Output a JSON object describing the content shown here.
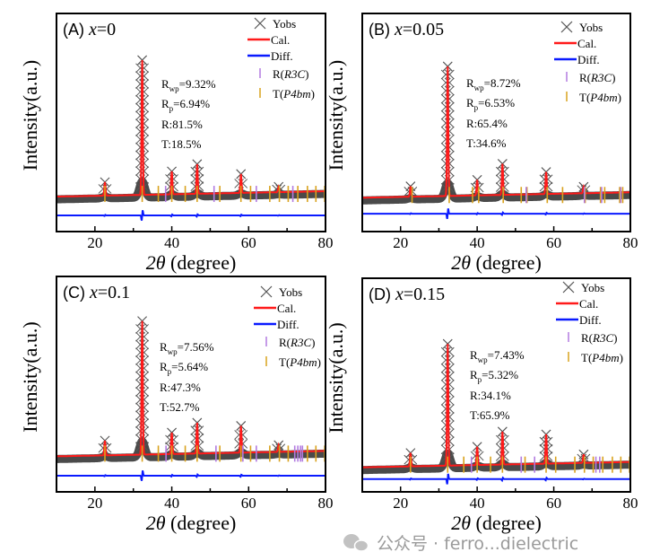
{
  "chart_data": [
    {
      "type": "line",
      "panel_label": "(A)",
      "variable": "x",
      "value_text": "=0",
      "xlabel": "2θ (degree)",
      "ylabel": "Intensity(a.u.)",
      "xlim": [
        10,
        80
      ],
      "xticks": [
        "20",
        "40",
        "60",
        "80"
      ],
      "stats": {
        "rwp": "=9.32%",
        "rp": "=6.94%",
        "r_phase": "R:81.5%",
        "t_phase": "T:18.5%"
      },
      "peaks": {
        "two_theta": [
          22.6,
          32.3,
          40.0,
          46.6,
          58.0,
          67.8
        ],
        "relative_intensity": [
          10,
          100,
          17,
          22,
          14,
          4
        ]
      },
      "r_reflections": [
        38.4,
        51.0,
        62.0,
        71.5
      ],
      "t_reflections": [
        22.6,
        32.3,
        36.5,
        40.0,
        43.5,
        46.6,
        52.5,
        58.0,
        60.5,
        65.5,
        68.0,
        70.3,
        72.8,
        75.3,
        77.5,
        79.8
      ]
    },
    {
      "type": "line",
      "panel_label": "(B)",
      "variable": "x",
      "value_text": "=0.05",
      "xlabel": "2θ (degree)",
      "ylabel": "Intensity(a.u.)",
      "xlim": [
        10,
        80
      ],
      "xticks": [
        "20",
        "40",
        "60",
        "80"
      ],
      "stats": {
        "rwp": "=8.72%",
        "rp": "=6.53%",
        "r_phase": "R:65.4%",
        "t_phase": "T:34.6%"
      },
      "peaks": {
        "two_theta": [
          22.6,
          32.3,
          40.0,
          46.6,
          58.0,
          67.8
        ],
        "relative_intensity": [
          8,
          100,
          12,
          24,
          17,
          5
        ]
      },
      "r_reflections": [
        52.8,
        68.0,
        72.5,
        77.5
      ],
      "t_reflections": [
        23.0,
        32.7,
        38.8,
        40.4,
        46.8,
        51.5,
        53.0,
        58.3,
        62.3,
        68.2,
        72.2,
        73.3,
        77.2,
        78.0
      ]
    },
    {
      "type": "line",
      "panel_label": "(C)",
      "variable": "x",
      "value_text": "=0.1",
      "xlabel": "2θ (degree)",
      "ylabel": "Intensity(a.u.)",
      "xlim": [
        10,
        80
      ],
      "xticks": [
        "20",
        "40",
        "60",
        "80"
      ],
      "stats": {
        "rwp": "=7.56%",
        "rp": "=5.64%",
        "r_phase": "R:47.3%",
        "t_phase": "T:52.7%"
      },
      "peaks": {
        "two_theta": [
          22.6,
          32.3,
          40.0,
          46.6,
          58.0,
          67.8
        ],
        "relative_intensity": [
          11,
          100,
          16,
          23,
          20,
          5
        ]
      },
      "r_reflections": [
        38.5,
        51.5,
        58.5,
        62.0,
        72.0,
        72.8,
        73.5,
        74.0
      ],
      "t_reflections": [
        22.6,
        32.3,
        36.5,
        40.0,
        43.5,
        46.6,
        52.5,
        58.0,
        60.5,
        65.5,
        68.0,
        70.3,
        75.3,
        77.5,
        79.8
      ]
    },
    {
      "type": "line",
      "panel_label": "(D)",
      "variable": "x",
      "value_text": "=0.15",
      "xlabel": "2θ (degree)",
      "ylabel": "Intensity(a.u.)",
      "xlim": [
        10,
        80
      ],
      "xticks": [
        "20",
        "40",
        "60",
        "80"
      ],
      "stats": {
        "rwp": "=7.43%",
        "rp": "=5.32%",
        "r_phase": "R:34.1%",
        "t_phase": "T:65.9%"
      },
      "peaks": {
        "two_theta": [
          22.6,
          32.3,
          40.0,
          46.6,
          58.0,
          67.8
        ],
        "relative_intensity": [
          11,
          100,
          15,
          27,
          24,
          7
        ]
      },
      "r_reflections": [
        38.5,
        51.5,
        55.0,
        71.0,
        72.0
      ],
      "t_reflections": [
        22.6,
        32.3,
        36.5,
        40.0,
        43.5,
        46.6,
        52.5,
        58.0,
        60.5,
        65.5,
        68.0,
        70.3,
        72.8,
        75.3,
        77.5,
        79.8
      ]
    }
  ],
  "legend": {
    "yobs": "Yobs",
    "cal": "Cal.",
    "diff": "Diff.",
    "r_prefix": "R(",
    "r_group": "R3C",
    "r_suffix": ")",
    "t_prefix": "T(",
    "t_group": "P4bm",
    "t_suffix": ")"
  },
  "stat_symbols": {
    "r": "R",
    "wp": "wp",
    "p": "p"
  },
  "axis_text": {
    "two": "2",
    "theta": "θ",
    "degree": " (degree)",
    "ylabel": "Intensity(a.u.)"
  },
  "colors": {
    "yobs": "#4a4a4a",
    "cal": "#ff1a1a",
    "diff": "#0a1aff",
    "r_ticks": "#b27be0",
    "t_ticks": "#d9a21e"
  },
  "watermark": "公众号 · ferro...dielectric"
}
